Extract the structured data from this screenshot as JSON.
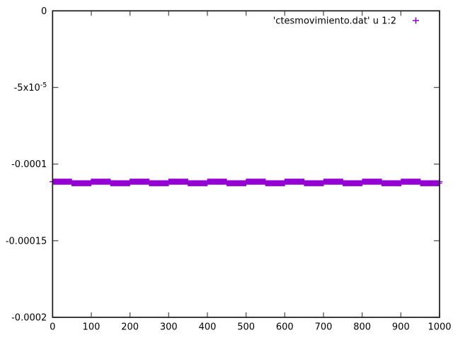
{
  "colors": {
    "background": "#ffffff",
    "border": "#1a1a1a",
    "tick": "#555555",
    "text": "#000000",
    "series1": "#9400d3"
  },
  "chart_data": {
    "type": "scatter",
    "title": "",
    "xlabel": "",
    "ylabel": "",
    "x_range": [
      0,
      1000
    ],
    "y_range": [
      -0.0002,
      0
    ],
    "grid": false,
    "x_ticks": [
      {
        "v": 0,
        "label": "0"
      },
      {
        "v": 100,
        "label": "100"
      },
      {
        "v": 200,
        "label": "200"
      },
      {
        "v": 300,
        "label": "300"
      },
      {
        "v": 400,
        "label": "400"
      },
      {
        "v": 500,
        "label": "500"
      },
      {
        "v": 600,
        "label": "600"
      },
      {
        "v": 700,
        "label": "700"
      },
      {
        "v": 800,
        "label": "800"
      },
      {
        "v": 900,
        "label": "900"
      },
      {
        "v": 1000,
        "label": "1000"
      }
    ],
    "y_ticks": [
      {
        "v": 0,
        "label": "0"
      },
      {
        "v": -5e-05,
        "label": "-5x10",
        "sup": "-5"
      },
      {
        "v": -0.0001,
        "label": "-0.0001"
      },
      {
        "v": -0.00015,
        "label": "-0.00015"
      },
      {
        "v": -0.0002,
        "label": "-0.0002"
      }
    ],
    "legend": {
      "position": "top-right",
      "entries": [
        {
          "label": "'ctesmovimiento.dat' u 1:2",
          "marker": "plus",
          "color": "#9400d3"
        }
      ]
    },
    "series": [
      {
        "name": "'ctesmovimiento.dat' u 1:2",
        "marker": "plus",
        "color": "#9400d3",
        "x_start": 0,
        "x_end": 1000,
        "n_points": 800,
        "y_base": -0.000112,
        "y_square_wave_amplitude": 5e-07,
        "y_square_wave_period_x": 100
      }
    ]
  }
}
